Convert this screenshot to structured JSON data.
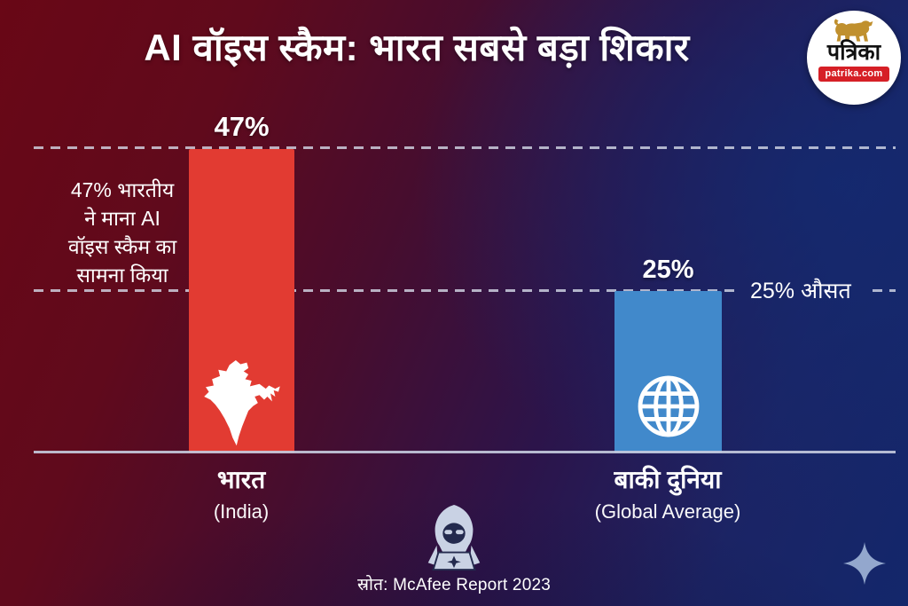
{
  "title": "AI वॉइस स्कैम: भारत सबसे बड़ा शिकार",
  "logo": {
    "name": "पत्रिका",
    "site": "patrika.com"
  },
  "chart_data": {
    "type": "bar",
    "title": "AI वॉइस स्कैम: भारत सबसे बड़ा शिकार",
    "categories": [
      "भारत",
      "बाकी दुनिया"
    ],
    "category_subtitles": [
      "(India)",
      "(Global Average)"
    ],
    "values": [
      47,
      25
    ],
    "value_labels": [
      "47%",
      "25%"
    ],
    "unit": "%",
    "bar_colors": [
      "#e23b32",
      "#4189cb"
    ],
    "bar_icons": [
      "india-map-icon",
      "globe-icon"
    ],
    "xlabel": "",
    "ylabel": "",
    "ylim": [
      0,
      55
    ],
    "reference_lines": [
      {
        "value": 47,
        "style": "dashed"
      },
      {
        "value": 25,
        "style": "dashed",
        "label": "25% औसत"
      }
    ],
    "legend": "none",
    "grid": "dashed reference lines only"
  },
  "annotations": {
    "left_note_lines": [
      "47% भारतीय",
      "ने माना AI",
      "वॉइस स्कैम का",
      "सामना किया"
    ],
    "right_note": "25% औसत"
  },
  "source": "स्रोत: McAfee Report 2023",
  "colors": {
    "bar_india": "#e23b32",
    "bar_global": "#4189cb",
    "background_left": "#690716",
    "background_right": "#132a70",
    "logo_banner_red": "#d61f26",
    "lion_gold": "#c0902e",
    "dashed_line": "#d5dae8",
    "text": "#ffffff",
    "sparkle": "#93a7cd"
  }
}
